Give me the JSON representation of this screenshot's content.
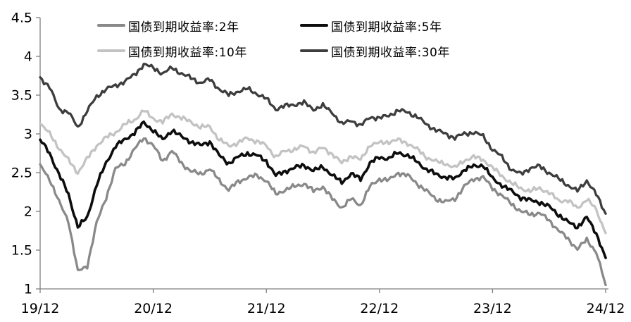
{
  "chart_data": {
    "type": "line",
    "title": "",
    "xlabel": "",
    "ylabel": "",
    "grid": false,
    "legend_position": "top",
    "ylim": [
      1,
      4.5
    ],
    "y_ticks": [
      "4.5",
      "4",
      "3.5",
      "3",
      "2.5",
      "2",
      "1.5",
      "1"
    ],
    "y_tick_values": [
      4.5,
      4,
      3.5,
      3,
      2.5,
      2,
      1.5,
      1
    ],
    "x_tick_labels": [
      "19/12",
      "20/12",
      "21/12",
      "22/12",
      "23/12",
      "24/12"
    ],
    "x_tick_month_index": [
      0,
      12,
      24,
      36,
      48,
      60
    ],
    "months_span": 61,
    "x_unit": "monthly points from Dec 2019 to Dec 2024, values in percent yield",
    "series": [
      {
        "name": "国债到期收益率:2年",
        "color": "#898989",
        "values": [
          2.6,
          2.42,
          2.12,
          1.88,
          1.22,
          1.3,
          1.85,
          2.18,
          2.55,
          2.62,
          2.8,
          2.95,
          2.85,
          2.65,
          2.78,
          2.62,
          2.52,
          2.48,
          2.55,
          2.4,
          2.28,
          2.38,
          2.44,
          2.46,
          2.4,
          2.22,
          2.28,
          2.32,
          2.36,
          2.26,
          2.32,
          2.16,
          2.05,
          2.16,
          2.08,
          2.32,
          2.42,
          2.4,
          2.5,
          2.46,
          2.36,
          2.26,
          2.16,
          2.12,
          2.16,
          2.32,
          2.42,
          2.44,
          2.3,
          2.2,
          2.1,
          2.0,
          1.96,
          1.98,
          1.88,
          1.76,
          1.64,
          1.52,
          1.63,
          1.48,
          1.05
        ]
      },
      {
        "name": "国债到期收益率:5年",
        "color": "#0d0d0d",
        "values": [
          2.92,
          2.75,
          2.48,
          2.22,
          1.8,
          1.92,
          2.35,
          2.62,
          2.85,
          2.92,
          3.02,
          3.14,
          3.05,
          2.92,
          3.05,
          2.96,
          2.9,
          2.85,
          2.9,
          2.72,
          2.62,
          2.7,
          2.75,
          2.72,
          2.65,
          2.46,
          2.52,
          2.56,
          2.6,
          2.52,
          2.58,
          2.46,
          2.38,
          2.48,
          2.42,
          2.62,
          2.7,
          2.68,
          2.76,
          2.72,
          2.64,
          2.54,
          2.48,
          2.44,
          2.42,
          2.54,
          2.58,
          2.6,
          2.42,
          2.34,
          2.26,
          2.18,
          2.14,
          2.12,
          2.06,
          1.96,
          1.86,
          1.8,
          1.92,
          1.72,
          1.4
        ]
      },
      {
        "name": "国债到期收益率:10年",
        "color": "#c3c3c3",
        "values": [
          3.14,
          3.0,
          2.82,
          2.66,
          2.5,
          2.68,
          2.85,
          2.95,
          3.02,
          3.12,
          3.18,
          3.3,
          3.2,
          3.15,
          3.26,
          3.2,
          3.16,
          3.08,
          3.1,
          2.92,
          2.85,
          2.88,
          2.95,
          2.9,
          2.85,
          2.7,
          2.78,
          2.8,
          2.84,
          2.76,
          2.82,
          2.74,
          2.62,
          2.72,
          2.66,
          2.86,
          2.88,
          2.9,
          2.92,
          2.88,
          2.8,
          2.7,
          2.64,
          2.62,
          2.56,
          2.66,
          2.7,
          2.67,
          2.56,
          2.46,
          2.36,
          2.3,
          2.26,
          2.3,
          2.24,
          2.14,
          2.14,
          2.04,
          2.16,
          2.02,
          1.72
        ]
      },
      {
        "name": "国债到期收益率:30年",
        "color": "#3d3d3d",
        "values": [
          3.73,
          3.6,
          3.32,
          3.28,
          3.08,
          3.3,
          3.48,
          3.58,
          3.62,
          3.68,
          3.76,
          3.9,
          3.85,
          3.78,
          3.85,
          3.78,
          3.72,
          3.66,
          3.7,
          3.58,
          3.5,
          3.55,
          3.58,
          3.52,
          3.45,
          3.32,
          3.36,
          3.38,
          3.4,
          3.32,
          3.36,
          3.28,
          3.12,
          3.18,
          3.1,
          3.22,
          3.2,
          3.24,
          3.3,
          3.28,
          3.22,
          3.12,
          3.05,
          3.0,
          2.95,
          3.0,
          3.02,
          2.97,
          2.8,
          2.7,
          2.54,
          2.48,
          2.56,
          2.58,
          2.5,
          2.42,
          2.34,
          2.26,
          2.4,
          2.22,
          1.97
        ]
      }
    ],
    "axis_color": "#7f7f7f"
  }
}
